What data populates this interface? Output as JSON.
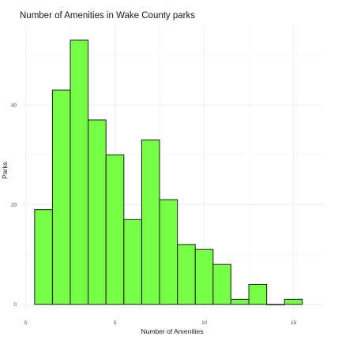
{
  "chart_data": {
    "type": "bar",
    "title": "Number of Amenities in Wake County parks",
    "xlabel": "Number of Amenities",
    "ylabel": "Parks",
    "bin_width": 1,
    "bins": [
      {
        "start": 0.5,
        "end": 1.5,
        "count": 19
      },
      {
        "start": 1.5,
        "end": 2.5,
        "count": 43
      },
      {
        "start": 2.5,
        "end": 3.5,
        "count": 53
      },
      {
        "start": 3.5,
        "end": 4.5,
        "count": 37
      },
      {
        "start": 4.5,
        "end": 5.5,
        "count": 30
      },
      {
        "start": 5.5,
        "end": 6.5,
        "count": 17
      },
      {
        "start": 6.5,
        "end": 7.5,
        "count": 33
      },
      {
        "start": 7.5,
        "end": 8.5,
        "count": 21
      },
      {
        "start": 8.5,
        "end": 9.5,
        "count": 12
      },
      {
        "start": 9.5,
        "end": 10.5,
        "count": 11
      },
      {
        "start": 10.5,
        "end": 11.5,
        "count": 8
      },
      {
        "start": 11.5,
        "end": 12.5,
        "count": 1
      },
      {
        "start": 12.5,
        "end": 13.5,
        "count": 4
      },
      {
        "start": 13.5,
        "end": 14.5,
        "count": 0
      },
      {
        "start": 14.5,
        "end": 15.5,
        "count": 1
      }
    ],
    "xlim": [
      -0.2,
      16.7
    ],
    "ylim": [
      -1,
      56
    ],
    "x_ticks": [
      0,
      5,
      10,
      15
    ],
    "y_ticks": [
      0,
      20,
      40
    ],
    "x_tick_labels": [
      "0",
      "5",
      "10",
      "15"
    ],
    "y_tick_labels": [
      "0",
      "20",
      "40"
    ],
    "grid": true,
    "legend": "none",
    "colors": {
      "bar_fill": "#76FF45",
      "bar_outline": "#1a1a1a",
      "grid_major": "#ebebeb",
      "grid_minor": "#f5f5f5",
      "background": "#ffffff"
    }
  }
}
